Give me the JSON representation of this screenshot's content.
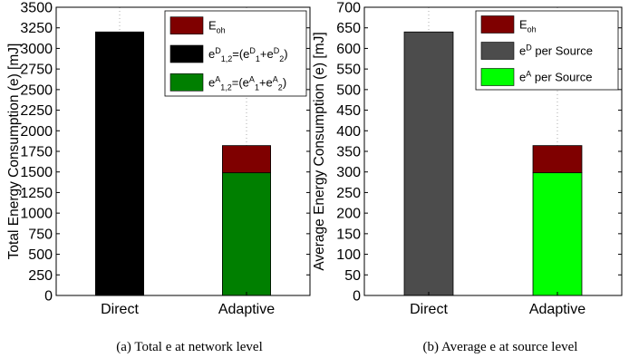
{
  "chart_data": [
    {
      "type": "bar",
      "stacked": true,
      "categories": [
        "Direct",
        "Adaptive"
      ],
      "ylabel": "Total Energy Consumption (e) [mJ]",
      "ylim": [
        0,
        3500
      ],
      "yticks": [
        0,
        250,
        500,
        750,
        1000,
        1250,
        1500,
        1750,
        2000,
        2250,
        2500,
        2750,
        3000,
        3250,
        3500
      ],
      "grid": "vertical dotted lines at categories",
      "legend_position": "top-right",
      "caption": "(a) Total e at network level",
      "series": [
        {
          "legend_html": "e<sup>D</sup><sub>1,2</sub>=(e<sup>D</sup><sub>1</sub>+e<sup>D</sup><sub>2</sub>)",
          "color": "#000000",
          "values": [
            3200,
            0
          ]
        },
        {
          "legend_html": "e<sup>A</sup><sub>1,2</sub>=(e<sup>A</sup><sub>1</sub>+e<sup>A</sup><sub>2</sub>)",
          "color": "#007f00",
          "values": [
            0,
            1490
          ]
        },
        {
          "legend_html": "E<sub>oh</sub>",
          "color": "#7f0000",
          "values": [
            0,
            330
          ]
        }
      ],
      "legend_order": [
        2,
        0,
        1
      ]
    },
    {
      "type": "bar",
      "stacked": true,
      "categories": [
        "Direct",
        "Adaptive"
      ],
      "ylabel": "Average Energy Consumption (e) [mJ]",
      "ylim": [
        0,
        700
      ],
      "yticks": [
        0,
        50,
        100,
        150,
        200,
        250,
        300,
        350,
        400,
        450,
        500,
        550,
        600,
        650,
        700
      ],
      "grid": "vertical dotted lines at categories",
      "legend_position": "top-right",
      "caption": "(b) Average e at source level",
      "series": [
        {
          "legend_html": "e<sup>D</sup> per Source",
          "color": "#4c4c4c",
          "values": [
            640,
            0
          ]
        },
        {
          "legend_html": "e<sup>A</sup> per Source",
          "color": "#00ff00",
          "values": [
            0,
            298
          ]
        },
        {
          "legend_html": "E<sub>oh</sub>",
          "color": "#7f0000",
          "values": [
            0,
            66
          ]
        }
      ],
      "legend_order": [
        2,
        0,
        1
      ]
    }
  ]
}
